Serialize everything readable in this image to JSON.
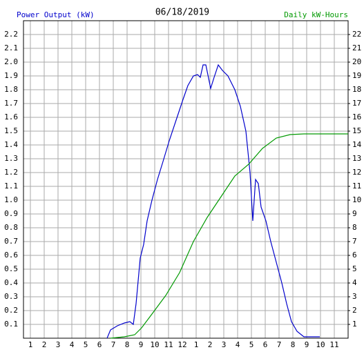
{
  "chart_data": {
    "type": "line",
    "title": "06/18/2019",
    "ylabel": "Power Output (kW)",
    "y2label": "Daily kW-Hours",
    "xlim": [
      0.5,
      24
    ],
    "xticks": [
      1,
      2,
      3,
      4,
      5,
      6,
      7,
      8,
      9,
      10,
      11,
      12,
      {
        "value": 13,
        "label": "1"
      },
      {
        "value": 14,
        "label": "2"
      },
      {
        "value": 15,
        "label": "3"
      },
      {
        "value": 16,
        "label": "4"
      },
      {
        "value": 17,
        "label": "5"
      },
      {
        "value": 18,
        "label": "6"
      },
      {
        "value": 19,
        "label": "7"
      },
      {
        "value": 20,
        "label": "8"
      },
      {
        "value": 21,
        "label": "9"
      },
      {
        "value": 22,
        "label": "10"
      },
      {
        "value": 23,
        "label": "11"
      }
    ],
    "ylim": [
      0,
      2.3
    ],
    "yticks": [
      0.1,
      0.2,
      0.3,
      0.4,
      0.5,
      0.6,
      0.7,
      0.8,
      0.9,
      {
        "value": 1,
        "label": "1.0"
      },
      1.1,
      1.2,
      1.3,
      1.4,
      1.5,
      1.6,
      1.7,
      1.8,
      1.9,
      {
        "value": 2,
        "label": "2.0"
      },
      2.1,
      2.2
    ],
    "y2lim": [
      0,
      23
    ],
    "y2ticks": [
      1,
      2,
      3,
      4,
      5,
      6,
      7,
      8,
      9,
      10,
      11,
      12,
      13,
      14,
      15,
      16,
      17,
      18,
      19,
      20,
      21,
      22
    ],
    "grid": true,
    "series": [
      {
        "color": "#0000cc",
        "x": [
          6.55,
          6.8,
          7.3,
          7.8,
          8.2,
          8.45,
          8.65,
          8.95,
          9.2,
          9.45,
          9.8,
          10.2,
          10.6,
          11.05,
          11.55,
          12.05,
          12.4,
          12.8,
          13.1,
          13.3,
          13.5,
          13.7,
          14.05,
          14.3,
          14.6,
          14.9,
          15.3,
          15.8,
          16.2,
          16.6,
          16.9,
          17.1,
          17.3,
          17.5,
          17.7,
          18.05,
          18.4,
          18.8,
          19.2,
          19.55,
          19.9,
          20.3,
          20.8,
          21.95
        ],
        "values": [
          0,
          0.06,
          0.09,
          0.11,
          0.12,
          0.1,
          0.25,
          0.58,
          0.68,
          0.85,
          1.0,
          1.15,
          1.28,
          1.43,
          1.58,
          1.73,
          1.83,
          1.9,
          1.91,
          1.89,
          1.98,
          1.98,
          1.81,
          1.89,
          1.98,
          1.94,
          1.9,
          1.8,
          1.68,
          1.5,
          1.2,
          0.85,
          1.15,
          1.12,
          0.95,
          0.85,
          0.7,
          0.55,
          0.4,
          0.25,
          0.12,
          0.05,
          0.01,
          0.01
        ]
      },
      {
        "color": "#009900",
        "axis": "y2",
        "x": [
          6.8,
          7.8,
          8.55,
          9.05,
          9.8,
          10.8,
          11.8,
          12.8,
          13.8,
          14.8,
          15.8,
          16.8,
          17.8,
          18.8,
          19.8,
          20.8,
          24
        ],
        "values": [
          0,
          0.1,
          0.25,
          0.75,
          1.75,
          3.1,
          4.75,
          7,
          8.75,
          10.25,
          11.75,
          12.6,
          13.75,
          14.5,
          14.75,
          14.8,
          14.8
        ]
      }
    ]
  }
}
